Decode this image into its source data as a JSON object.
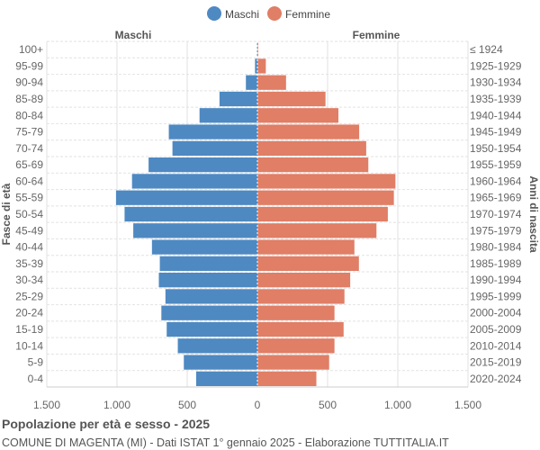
{
  "chart_data": {
    "type": "bar",
    "orientation": "horizontal-pyramid",
    "title": "Popolazione per età e sesso - 2025",
    "subtitle": "COMUNE DI MAGENTA (MI) - Dati ISTAT 1° gennaio 2025 - Elaborazione TUTTITALIA.IT",
    "ylabel_left": "Fasce di età",
    "ylabel_right": "Anni di nascita",
    "side_label_left": "Maschi",
    "side_label_right": "Femmine",
    "legend": {
      "position": "top-center",
      "items": [
        {
          "name": "Maschi",
          "color": "#4e89c2"
        },
        {
          "name": "Femmine",
          "color": "#e07e66"
        }
      ]
    },
    "xlim": [
      -1500,
      1500
    ],
    "xticks": [
      {
        "value": -1500,
        "label": "1.500"
      },
      {
        "value": -1000,
        "label": "1.000"
      },
      {
        "value": -500,
        "label": "500"
      },
      {
        "value": 0,
        "label": "0"
      },
      {
        "value": 500,
        "label": "500"
      },
      {
        "value": 1000,
        "label": "1.000"
      },
      {
        "value": 1500,
        "label": "1.500"
      }
    ],
    "grid": true,
    "categories": [
      "100+",
      "95-99",
      "90-94",
      "85-89",
      "80-84",
      "75-79",
      "70-74",
      "65-69",
      "60-64",
      "55-59",
      "50-54",
      "45-49",
      "40-44",
      "35-39",
      "30-34",
      "25-29",
      "20-24",
      "15-19",
      "10-14",
      "5-9",
      "0-4"
    ],
    "birth_years": [
      "≤ 1924",
      "1925-1929",
      "1930-1934",
      "1935-1939",
      "1940-1944",
      "1945-1949",
      "1950-1954",
      "1955-1959",
      "1960-1964",
      "1965-1969",
      "1970-1974",
      "1975-1979",
      "1980-1984",
      "1985-1989",
      "1990-1994",
      "1995-1999",
      "2000-2004",
      "2005-2009",
      "2010-2014",
      "2015-2019",
      "2020-2024"
    ],
    "series": [
      {
        "name": "Maschi",
        "color": "#4e89c2",
        "values": [
          3,
          17,
          82,
          270,
          412,
          631,
          605,
          775,
          893,
          1007,
          946,
          884,
          751,
          695,
          702,
          655,
          684,
          646,
          567,
          524,
          436
        ]
      },
      {
        "name": "Femmine",
        "color": "#e07e66",
        "values": [
          6,
          60,
          204,
          485,
          577,
          725,
          775,
          790,
          983,
          972,
          929,
          848,
          691,
          723,
          661,
          620,
          549,
          614,
          549,
          511,
          420
        ]
      }
    ]
  }
}
